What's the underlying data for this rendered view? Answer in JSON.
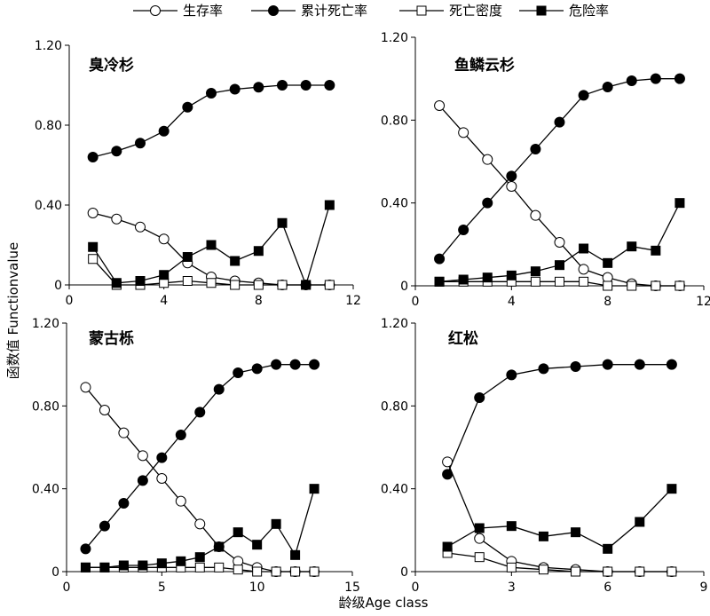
{
  "legend": [
    {
      "label": "生存率",
      "marker": "circle-open"
    },
    {
      "label": "累计死亡率",
      "marker": "circle-filled"
    },
    {
      "label": "死亡密度",
      "marker": "square-open"
    },
    {
      "label": "危险率",
      "marker": "square-filled"
    }
  ],
  "ylabel": "函数值 Functionvalue",
  "xlabel": "龄级Age class",
  "chart_data": [
    {
      "type": "line",
      "title": "臭冷杉",
      "xlim": [
        0,
        12
      ],
      "xticks": [
        0,
        4,
        8,
        12
      ],
      "ylim": [
        0,
        1.2
      ],
      "yticks": [
        "0",
        "0.40",
        "0.80",
        "1.20"
      ],
      "x": [
        1,
        2,
        3,
        4,
        5,
        6,
        7,
        8,
        9,
        10,
        11
      ],
      "series": [
        {
          "name": "生存率",
          "marker": "circle-open",
          "values": [
            0.36,
            0.33,
            0.29,
            0.23,
            0.11,
            0.04,
            0.02,
            0.01,
            0.0,
            0.0,
            0.0
          ]
        },
        {
          "name": "累计死亡率",
          "marker": "circle-filled",
          "values": [
            0.64,
            0.67,
            0.71,
            0.77,
            0.89,
            0.96,
            0.98,
            0.99,
            1.0,
            1.0,
            1.0
          ]
        },
        {
          "name": "死亡密度",
          "marker": "square-open",
          "values": [
            0.13,
            0.0,
            0.0,
            0.01,
            0.02,
            0.01,
            0.0,
            0.0,
            0.0,
            0.0,
            0.0
          ]
        },
        {
          "name": "危险率",
          "marker": "square-filled",
          "values": [
            0.19,
            0.01,
            0.02,
            0.05,
            0.14,
            0.2,
            0.12,
            0.17,
            0.31,
            0.0,
            0.4
          ]
        }
      ]
    },
    {
      "type": "line",
      "title": "鱼鳞云杉",
      "xlim": [
        0,
        12
      ],
      "xticks": [
        0,
        4,
        8,
        12
      ],
      "ylim": [
        0,
        1.2
      ],
      "yticks": [
        "0",
        "0.40",
        "0.80",
        "1.20"
      ],
      "x": [
        1,
        2,
        3,
        4,
        5,
        6,
        7,
        8,
        9,
        10,
        11
      ],
      "series": [
        {
          "name": "生存率",
          "marker": "circle-open",
          "values": [
            0.87,
            0.74,
            0.61,
            0.48,
            0.34,
            0.21,
            0.08,
            0.04,
            0.01,
            0.0,
            0.0
          ]
        },
        {
          "name": "累计死亡率",
          "marker": "circle-filled",
          "values": [
            0.13,
            0.27,
            0.4,
            0.53,
            0.66,
            0.79,
            0.92,
            0.96,
            0.99,
            1.0,
            1.0
          ]
        },
        {
          "name": "死亡密度",
          "marker": "square-open",
          "values": [
            0.02,
            0.02,
            0.02,
            0.02,
            0.02,
            0.02,
            0.02,
            0.0,
            0.0,
            0.0,
            0.0
          ]
        },
        {
          "name": "危险率",
          "marker": "square-filled",
          "values": [
            0.02,
            0.03,
            0.04,
            0.05,
            0.07,
            0.1,
            0.18,
            0.11,
            0.19,
            0.17,
            0.4
          ]
        }
      ]
    },
    {
      "type": "line",
      "title": "蒙古栎",
      "xlim": [
        0,
        15
      ],
      "xticks": [
        0,
        5,
        10,
        15
      ],
      "ylim": [
        0,
        1.2
      ],
      "yticks": [
        "0",
        "0.40",
        "0.80",
        "1.20"
      ],
      "x": [
        1,
        2,
        3,
        4,
        5,
        6,
        7,
        8,
        9,
        10,
        11,
        12,
        13
      ],
      "series": [
        {
          "name": "生存率",
          "marker": "circle-open",
          "values": [
            0.89,
            0.78,
            0.67,
            0.56,
            0.45,
            0.34,
            0.23,
            0.12,
            0.05,
            0.02,
            0.0,
            0.0,
            0.0
          ]
        },
        {
          "name": "累计死亡率",
          "marker": "circle-filled",
          "values": [
            0.11,
            0.22,
            0.33,
            0.44,
            0.55,
            0.66,
            0.77,
            0.88,
            0.96,
            0.98,
            1.0,
            1.0,
            1.0
          ]
        },
        {
          "name": "死亡密度",
          "marker": "square-open",
          "values": [
            0.02,
            0.02,
            0.02,
            0.02,
            0.02,
            0.02,
            0.02,
            0.02,
            0.01,
            0.0,
            0.0,
            0.0,
            0.0
          ]
        },
        {
          "name": "危险率",
          "marker": "square-filled",
          "values": [
            0.02,
            0.02,
            0.03,
            0.03,
            0.04,
            0.05,
            0.07,
            0.12,
            0.19,
            0.13,
            0.23,
            0.08,
            0.4
          ]
        }
      ]
    },
    {
      "type": "line",
      "title": "红松",
      "xlim": [
        0,
        9
      ],
      "xticks": [
        0,
        3,
        6,
        9
      ],
      "ylim": [
        0,
        1.2
      ],
      "yticks": [
        "0",
        "0.40",
        "0.80",
        "1.20"
      ],
      "x": [
        1,
        2,
        3,
        4,
        5,
        6,
        7,
        8
      ],
      "series": [
        {
          "name": "生存率",
          "marker": "circle-open",
          "values": [
            0.53,
            0.16,
            0.05,
            0.02,
            0.01,
            0.0,
            0.0,
            0.0
          ]
        },
        {
          "name": "累计死亡率",
          "marker": "circle-filled",
          "values": [
            0.47,
            0.84,
            0.95,
            0.98,
            0.99,
            1.0,
            1.0,
            1.0
          ]
        },
        {
          "name": "死亡密度",
          "marker": "square-open",
          "values": [
            0.09,
            0.07,
            0.02,
            0.01,
            0.0,
            0.0,
            0.0,
            0.0
          ]
        },
        {
          "name": "危险率",
          "marker": "square-filled",
          "values": [
            0.12,
            0.21,
            0.22,
            0.17,
            0.19,
            0.11,
            0.24,
            0.4
          ]
        }
      ]
    }
  ]
}
